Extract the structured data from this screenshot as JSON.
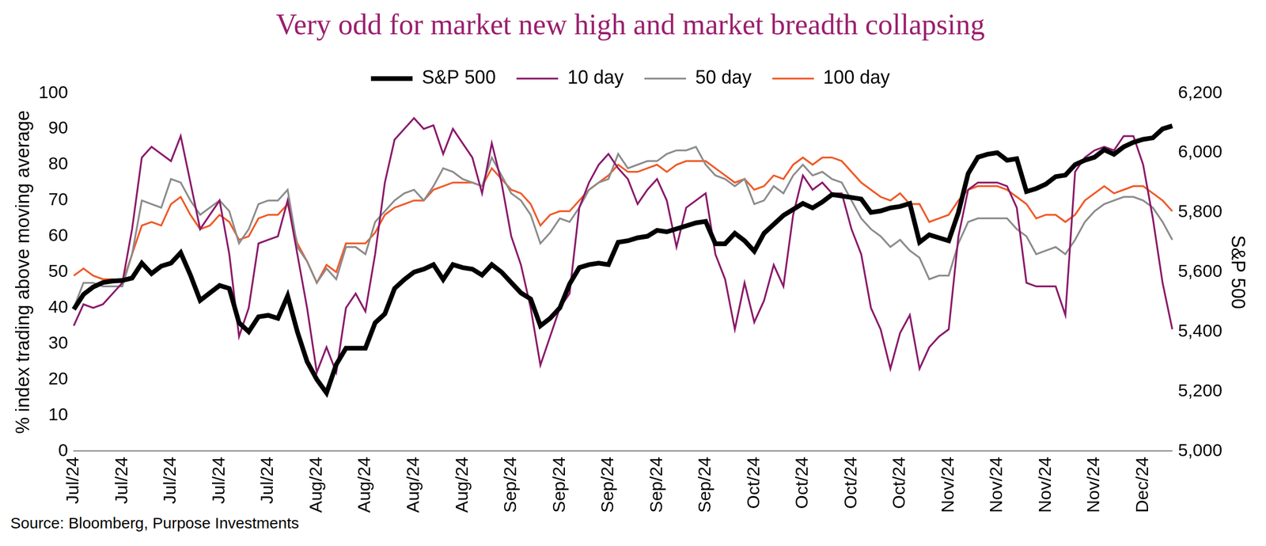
{
  "chart_data": {
    "type": "line",
    "title": "Very odd for market new high and market breadth collapsing",
    "source": "Source: Bloomberg, Purpose Investments",
    "y_label": "% index trading above moving average",
    "y2_label": "S&P 500",
    "categories": [
      "Jul/24",
      null,
      null,
      null,
      null,
      "Jul/24",
      null,
      null,
      null,
      null,
      "Jul/24",
      null,
      null,
      null,
      null,
      "Jul/24",
      null,
      null,
      null,
      null,
      "Jul/24",
      null,
      null,
      null,
      null,
      "Aug/24",
      null,
      null,
      null,
      null,
      "Aug/24",
      null,
      null,
      null,
      null,
      "Aug/24",
      null,
      null,
      null,
      null,
      "Aug/24",
      null,
      null,
      null,
      null,
      "Sep/24",
      null,
      null,
      null,
      null,
      "Sep/24",
      null,
      null,
      null,
      null,
      "Sep/24",
      null,
      null,
      null,
      null,
      "Sep/24",
      null,
      null,
      null,
      null,
      "Sep/24",
      null,
      null,
      null,
      null,
      "Oct/24",
      null,
      null,
      null,
      null,
      "Oct/24",
      null,
      null,
      null,
      null,
      "Oct/24",
      null,
      null,
      null,
      null,
      "Oct/24",
      null,
      null,
      null,
      null,
      "Nov/24",
      null,
      null,
      null,
      null,
      "Nov/24",
      null,
      null,
      null,
      null,
      "Nov/24",
      null,
      null,
      null,
      null,
      "Nov/24",
      null,
      null,
      null,
      null,
      "Dec/24",
      null,
      null,
      null
    ],
    "series": [
      {
        "name": "10 day",
        "color": "#8b1a6b",
        "axis": "y",
        "values": [
          35,
          41,
          40,
          41,
          44,
          47,
          62,
          82,
          85,
          83,
          81,
          88,
          75,
          62,
          66,
          70,
          55,
          32,
          40,
          58,
          59,
          60,
          70,
          55,
          40,
          22,
          29,
          22,
          40,
          44,
          39,
          55,
          75,
          87,
          90,
          93,
          90,
          91,
          83,
          90,
          86,
          82,
          72,
          86,
          75,
          60,
          52,
          40,
          24,
          32,
          40,
          44,
          68,
          75,
          80,
          83,
          79,
          76,
          69,
          73,
          76,
          70,
          57,
          68,
          70,
          72,
          55,
          48,
          34,
          47,
          36,
          42,
          52,
          46,
          66,
          77,
          73,
          75,
          72,
          72,
          62,
          55,
          40,
          34,
          23,
          33,
          38,
          23,
          29,
          32,
          34,
          60,
          73,
          75,
          75,
          75,
          74,
          68,
          47,
          46,
          46,
          46,
          38,
          78,
          82,
          84,
          85,
          84,
          88,
          88,
          80,
          65,
          47,
          34
        ]
      },
      {
        "name": "50 day",
        "color": "#8c8c8c",
        "axis": "y",
        "values": [
          40,
          47,
          47,
          46,
          46,
          46,
          55,
          70,
          69,
          68,
          76,
          75,
          70,
          66,
          68,
          70,
          67,
          58,
          62,
          69,
          70,
          70,
          73,
          57,
          53,
          47,
          51,
          48,
          57,
          57,
          55,
          64,
          67,
          70,
          72,
          73,
          70,
          74,
          79,
          78,
          76,
          75,
          74,
          82,
          77,
          72,
          70,
          66,
          58,
          61,
          65,
          64,
          68,
          73,
          75,
          76,
          83,
          79,
          80,
          81,
          81,
          83,
          84,
          84,
          85,
          80,
          77,
          76,
          74,
          76,
          69,
          70,
          74,
          72,
          77,
          80,
          77,
          78,
          76,
          75,
          70,
          65,
          62,
          60,
          57,
          59,
          56,
          54,
          48,
          49,
          49,
          58,
          64,
          65,
          65,
          65,
          65,
          62,
          60,
          55,
          56,
          57,
          55,
          59,
          64,
          67,
          69,
          70,
          71,
          71,
          70,
          68,
          64,
          59
        ]
      },
      {
        "name": "100 day",
        "color": "#f05a28",
        "axis": "y",
        "values": [
          49,
          51,
          49,
          48,
          48,
          47,
          55,
          63,
          64,
          63,
          69,
          71,
          66,
          62,
          63,
          66,
          64,
          59,
          60,
          65,
          66,
          66,
          69,
          58,
          53,
          47,
          52,
          50,
          58,
          58,
          58,
          61,
          66,
          68,
          69,
          70,
          70,
          73,
          74,
          75,
          75,
          75,
          74,
          79,
          76,
          73,
          72,
          69,
          63,
          66,
          67,
          67,
          70,
          73,
          75,
          77,
          80,
          78,
          78,
          79,
          80,
          78,
          80,
          81,
          81,
          81,
          79,
          77,
          75,
          76,
          73,
          74,
          77,
          76,
          80,
          82,
          80,
          82,
          82,
          81,
          78,
          75,
          73,
          71,
          70,
          72,
          69,
          69,
          64,
          65,
          66,
          70,
          73,
          74,
          74,
          74,
          73,
          71,
          69,
          65,
          66,
          66,
          64,
          66,
          70,
          72,
          74,
          72,
          73,
          74,
          74,
          72,
          70,
          67
        ]
      },
      {
        "name": "S&P 500",
        "color": "#000000",
        "axis": "y2",
        "values": [
          5475,
          5525,
          5550,
          5565,
          5570,
          5572,
          5580,
          5630,
          5595,
          5620,
          5630,
          5665,
          5590,
          5505,
          5530,
          5555,
          5545,
          5430,
          5400,
          5450,
          5455,
          5445,
          5520,
          5400,
          5300,
          5240,
          5195,
          5290,
          5345,
          5345,
          5345,
          5430,
          5460,
          5545,
          5575,
          5600,
          5610,
          5625,
          5575,
          5625,
          5615,
          5610,
          5590,
          5625,
          5600,
          5565,
          5530,
          5510,
          5420,
          5445,
          5480,
          5560,
          5615,
          5625,
          5630,
          5625,
          5700,
          5705,
          5715,
          5720,
          5740,
          5735,
          5745,
          5755,
          5765,
          5770,
          5695,
          5695,
          5730,
          5705,
          5670,
          5730,
          5760,
          5790,
          5810,
          5830,
          5815,
          5835,
          5860,
          5855,
          5850,
          5845,
          5800,
          5805,
          5815,
          5820,
          5830,
          5700,
          5725,
          5715,
          5705,
          5800,
          5930,
          5985,
          5995,
          6000,
          5975,
          5980,
          5870,
          5880,
          5895,
          5920,
          5925,
          5960,
          5975,
          5985,
          6010,
          5995,
          6020,
          6035,
          6045,
          6050,
          6080,
          6090
        ]
      }
    ],
    "ylim": [
      0,
      100
    ],
    "yticks": [
      0,
      10,
      20,
      30,
      40,
      50,
      60,
      70,
      80,
      90,
      100
    ],
    "y2lim": [
      5000,
      6200
    ],
    "y2ticks": [
      {
        "value": 5000,
        "label": "5,000"
      },
      {
        "value": 5200,
        "label": "5,200"
      },
      {
        "value": 5400,
        "label": "5,400"
      },
      {
        "value": 5600,
        "label": "5,600"
      },
      {
        "value": 5800,
        "label": "5,800"
      },
      {
        "value": 6000,
        "label": "6,000"
      },
      {
        "value": 6200,
        "label": "6,200"
      }
    ],
    "grid": false,
    "legend": "top"
  }
}
